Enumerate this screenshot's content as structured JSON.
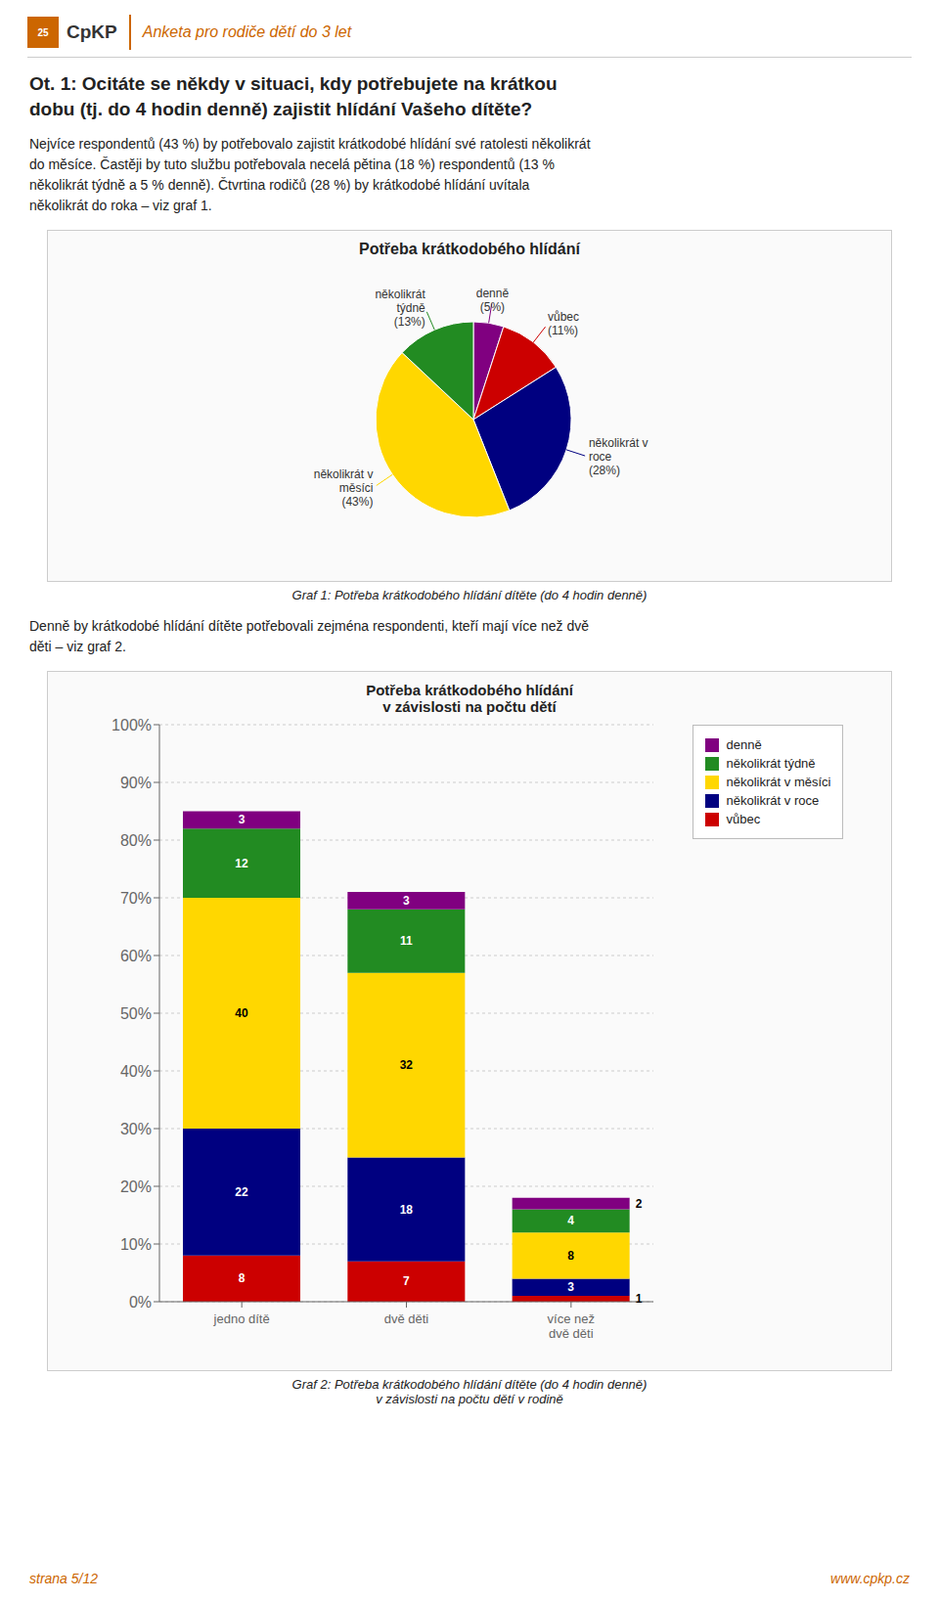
{
  "page": {
    "logo": "25",
    "brand": "CpKP",
    "header": "Anketa pro rodiče dětí do 3 let",
    "color": "#cc6600",
    "title": [
      "Ot. 1: Ocitáte se někdy v situaci, kdy potřebujete na krátkou",
      "dobu (tj. do 4 hodin denně) zajistit hlídání Vašeho dítěte?"
    ],
    "text1": [
      "Nejvíce respondentů (43 %) by potřebovalo zajistit krátkodobé hlídání své ratolesti několikrát",
      "do měsíce. Častěji by tuto službu potřebovala necelá pětina (18 %) respondentů (13 %",
      "několikrát týdně a 5 % denně). Čtvrtina rodičů (28 %) by krátkodobé hlídání uvítala",
      "několikrát do roka – viz graf 1."
    ],
    "text2": [
      "Denně by krátkodobé hlídání dítěte potřebovali zejména respondenti, kteří mají více než dvě",
      "děti – viz graf 2."
    ],
    "footer_left": "strana 5/12",
    "footer_right": "www.cpkp.cz"
  },
  "chart_data": [
    {
      "type": "pie",
      "title": "Potřeba krátkodobého hlídání",
      "caption": "Graf 1: Potřeba krátkodobého hlídání dítěte (do 4 hodin denně)",
      "categories": [
        "denně",
        "vůbec",
        "několikrát v\nroce",
        "několikrát v\nměsíci",
        "několikrát\ntýdně"
      ],
      "values": [
        5,
        11,
        28,
        43,
        13
      ],
      "value_labels": [
        "(5%)",
        "(11%)",
        "(28%)",
        "(43%)",
        "(13%)"
      ],
      "colors": [
        "#800080",
        "#cc0000",
        "#000080",
        "#ffd700",
        "#228B22"
      ],
      "data_labels": true
    },
    {
      "type": "bar",
      "stacked": true,
      "title": "Potřeba krátkodobého hlídání\nv závislosti na počtu dětí",
      "caption": "Graf 2: Potřeba krátkodobého hlídání dítěte (do 4 hodin denně)\nv závislosti na počtu dětí v rodině",
      "categories": [
        "jedno dítě",
        "dvě děti",
        "více než\ndvě děti"
      ],
      "series": [
        {
          "name": "vůbec",
          "color": "#cc0000",
          "values": [
            8,
            7,
            1
          ]
        },
        {
          "name": "několikrát v roce",
          "color": "#000080",
          "values": [
            22,
            18,
            3
          ]
        },
        {
          "name": "několikrát v měsíci",
          "color": "#ffd700",
          "values": [
            40,
            32,
            8
          ]
        },
        {
          "name": "několikrát týdně",
          "color": "#228B22",
          "values": [
            12,
            11,
            4
          ]
        },
        {
          "name": "denně",
          "color": "#800080",
          "values": [
            3,
            3,
            2
          ]
        }
      ],
      "ylim": [
        0,
        100
      ],
      "yticks": [
        {
          "value": 0,
          "label": "0%"
        },
        {
          "value": 10,
          "label": "10%"
        },
        {
          "value": 20,
          "label": "20%"
        },
        {
          "value": 30,
          "label": "30%"
        },
        {
          "value": 40,
          "label": "40%"
        },
        {
          "value": 50,
          "label": "50%"
        },
        {
          "value": 60,
          "label": "60%"
        },
        {
          "value": 70,
          "label": "70%"
        },
        {
          "value": 80,
          "label": "80%"
        },
        {
          "value": 90,
          "label": "90%"
        },
        {
          "value": 100,
          "label": "100%"
        }
      ],
      "grid": true,
      "data_labels": true,
      "legend": "right"
    }
  ]
}
